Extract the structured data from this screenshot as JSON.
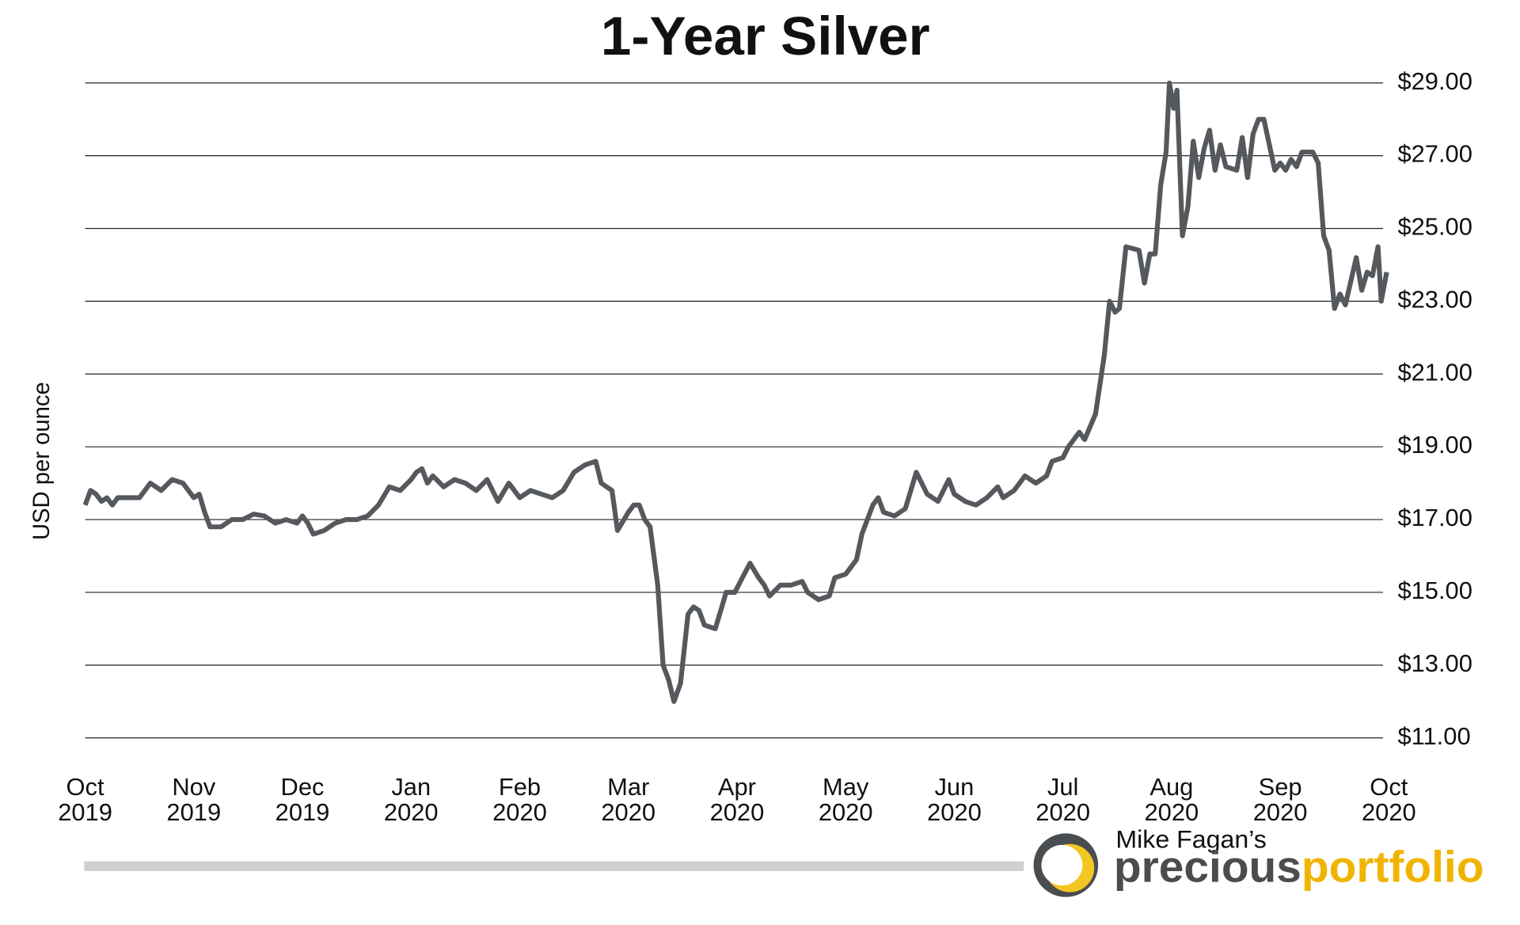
{
  "chart_data": {
    "type": "line",
    "title": "1-Year Silver",
    "y_label": "USD per ounce",
    "brand_top": "Mike Fagan’s",
    "brand_left": "precious",
    "brand_right": "portfolio",
    "xlim": [
      0,
      12
    ],
    "xticks": [
      {
        "value": 0,
        "label": "Oct 2019"
      },
      {
        "value": 1,
        "label": "Nov 2019"
      },
      {
        "value": 2,
        "label": "Dec 2019"
      },
      {
        "value": 3,
        "label": "Jan 2020"
      },
      {
        "value": 4,
        "label": "Feb 2020"
      },
      {
        "value": 5,
        "label": "Mar 2020"
      },
      {
        "value": 6,
        "label": "Apr 2020"
      },
      {
        "value": 7,
        "label": "May 2020"
      },
      {
        "value": 8,
        "label": "Jun 2020"
      },
      {
        "value": 9,
        "label": "Jul 2020"
      },
      {
        "value": 10,
        "label": "Aug 2020"
      },
      {
        "value": 11,
        "label": "Sep 2020"
      },
      {
        "value": 12,
        "label": "Oct 2020"
      }
    ],
    "ylim": [
      11,
      29
    ],
    "yticks": [
      {
        "value": 29,
        "label": "$29.00"
      },
      {
        "value": 27,
        "label": "$27.00"
      },
      {
        "value": 25,
        "label": "$25.00"
      },
      {
        "value": 23,
        "label": "$23.00"
      },
      {
        "value": 21,
        "label": "$21.00"
      },
      {
        "value": 19,
        "label": "$19.00"
      },
      {
        "value": 17,
        "label": "$17.00"
      },
      {
        "value": 15,
        "label": "$15.00"
      },
      {
        "value": 13,
        "label": "$13.00"
      },
      {
        "value": 11,
        "label": "$11.00"
      }
    ],
    "grid": true,
    "color": "#55595d",
    "x": [
      0,
      0.05,
      0.1,
      0.15,
      0.2,
      0.25,
      0.3,
      0.4,
      0.5,
      0.6,
      0.7,
      0.8,
      0.9,
      1.0,
      1.05,
      1.1,
      1.15,
      1.25,
      1.35,
      1.45,
      1.55,
      1.65,
      1.75,
      1.85,
      1.95,
      2.0,
      2.05,
      2.1,
      2.2,
      2.3,
      2.4,
      2.5,
      2.6,
      2.7,
      2.8,
      2.9,
      3.0,
      3.05,
      3.1,
      3.15,
      3.2,
      3.3,
      3.4,
      3.5,
      3.6,
      3.7,
      3.8,
      3.9,
      4.0,
      4.1,
      4.2,
      4.3,
      4.4,
      4.5,
      4.6,
      4.7,
      4.75,
      4.85,
      4.9,
      5.0,
      5.05,
      5.1,
      5.15,
      5.2,
      5.27,
      5.32,
      5.37,
      5.42,
      5.48,
      5.55,
      5.6,
      5.65,
      5.7,
      5.8,
      5.85,
      5.9,
      5.98,
      6.05,
      6.12,
      6.2,
      6.25,
      6.3,
      6.4,
      6.5,
      6.6,
      6.65,
      6.75,
      6.85,
      6.9,
      7.0,
      7.1,
      7.15,
      7.25,
      7.3,
      7.35,
      7.45,
      7.55,
      7.65,
      7.75,
      7.85,
      7.95,
      8.0,
      8.1,
      8.2,
      8.3,
      8.4,
      8.45,
      8.55,
      8.65,
      8.75,
      8.85,
      8.9,
      9.0,
      9.05,
      9.15,
      9.2,
      9.3,
      9.38,
      9.43,
      9.48,
      9.52,
      9.58,
      9.7,
      9.75,
      9.8,
      9.85,
      9.9,
      9.95,
      9.98,
      10.02,
      10.05,
      10.1,
      10.15,
      10.2,
      10.25,
      10.3,
      10.35,
      10.4,
      10.45,
      10.5,
      10.6,
      10.65,
      10.7,
      10.75,
      10.8,
      10.85,
      10.9,
      10.95,
      11.0,
      11.05,
      11.1,
      11.15,
      11.2,
      11.3,
      11.35,
      11.4,
      11.45,
      11.5,
      11.55,
      11.6,
      11.7,
      11.75,
      11.8,
      11.85,
      11.9,
      11.93,
      11.98
    ],
    "values": [
      17.4,
      17.8,
      17.7,
      17.5,
      17.6,
      17.4,
      17.6,
      17.6,
      17.6,
      18.0,
      17.8,
      18.1,
      18.0,
      17.6,
      17.7,
      17.2,
      16.8,
      16.8,
      17.0,
      17.0,
      17.15,
      17.1,
      16.9,
      17.0,
      16.9,
      17.1,
      16.9,
      16.6,
      16.7,
      16.9,
      17.0,
      17.0,
      17.1,
      17.4,
      17.9,
      17.8,
      18.1,
      18.3,
      18.4,
      18.0,
      18.2,
      17.9,
      18.1,
      18.0,
      17.8,
      18.1,
      17.5,
      18.0,
      17.6,
      17.8,
      17.7,
      17.6,
      17.8,
      18.3,
      18.5,
      18.6,
      18.0,
      17.8,
      16.7,
      17.2,
      17.4,
      17.4,
      17.0,
      16.8,
      15.2,
      13.0,
      12.6,
      12.0,
      12.5,
      14.4,
      14.6,
      14.5,
      14.1,
      14.0,
      14.5,
      15.0,
      15.0,
      15.4,
      15.8,
      15.4,
      15.2,
      14.9,
      15.2,
      15.2,
      15.3,
      15.0,
      14.8,
      14.9,
      15.4,
      15.5,
      15.9,
      16.6,
      17.4,
      17.6,
      17.2,
      17.1,
      17.3,
      18.3,
      17.7,
      17.5,
      18.1,
      17.7,
      17.5,
      17.4,
      17.6,
      17.9,
      17.6,
      17.8,
      18.2,
      18.0,
      18.2,
      18.6,
      18.7,
      19.0,
      19.4,
      19.2,
      19.9,
      21.5,
      23.0,
      22.7,
      22.8,
      24.5,
      24.4,
      23.5,
      24.3,
      24.3,
      26.2,
      27.1,
      29.0,
      28.3,
      28.8,
      24.8,
      25.6,
      27.4,
      26.4,
      27.2,
      27.7,
      26.6,
      27.3,
      26.7,
      26.6,
      27.5,
      26.4,
      27.6,
      28.0,
      28.0,
      27.3,
      26.6,
      26.8,
      26.6,
      26.9,
      26.7,
      27.1,
      27.1,
      26.8,
      24.8,
      24.4,
      22.8,
      23.2,
      22.9,
      24.2,
      23.3,
      23.8,
      23.7,
      24.5,
      23.0,
      23.8
    ]
  }
}
